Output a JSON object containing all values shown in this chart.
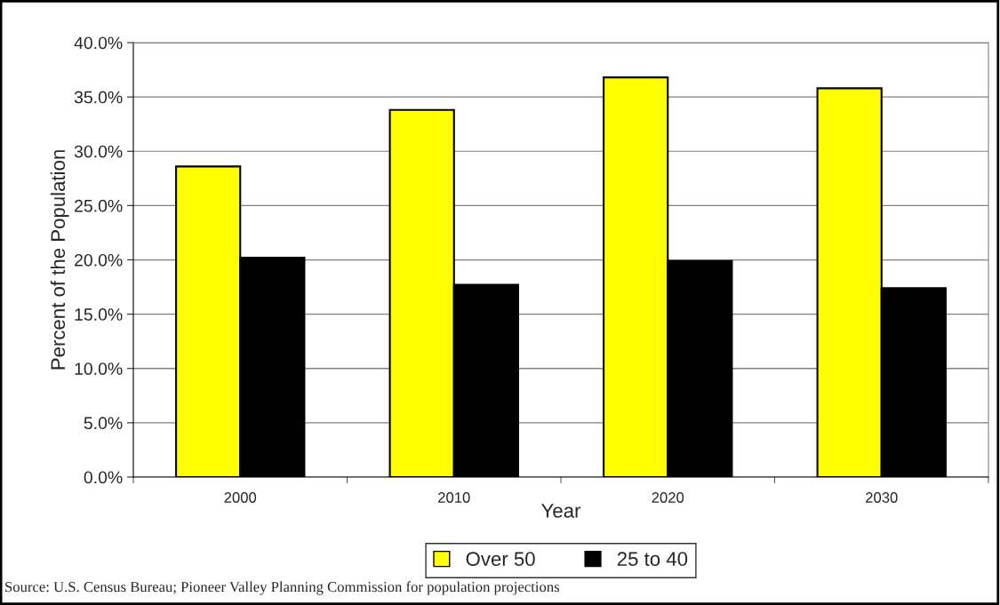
{
  "chart_data": {
    "type": "bar",
    "xlabel": "Year",
    "ylabel": "Percent of the Population",
    "categories": [
      "2000",
      "2010",
      "2020",
      "2030"
    ],
    "series": [
      {
        "name": "Over 50",
        "color": "#ffff00",
        "values": [
          28.6,
          33.8,
          36.8,
          35.8
        ]
      },
      {
        "name": "25 to 40",
        "color": "#000000",
        "values": [
          20.2,
          17.7,
          19.9,
          17.4
        ]
      }
    ],
    "ylim": [
      0,
      40
    ],
    "yticks": [
      {
        "value": 0,
        "label": "0.0%"
      },
      {
        "value": 5,
        "label": "5.0%"
      },
      {
        "value": 10,
        "label": "10.0%"
      },
      {
        "value": 15,
        "label": "15.0%"
      },
      {
        "value": 20,
        "label": "20.0%"
      },
      {
        "value": 25,
        "label": "25.0%"
      },
      {
        "value": 30,
        "label": "30.0%"
      },
      {
        "value": 35,
        "label": "35.0%"
      },
      {
        "value": 40,
        "label": "40.0%"
      }
    ],
    "grid": "y",
    "legend": "bottom",
    "annotations": [
      "Source: U.S. Census Bureau; Pioneer Valley Planning Commission for population projections"
    ]
  }
}
